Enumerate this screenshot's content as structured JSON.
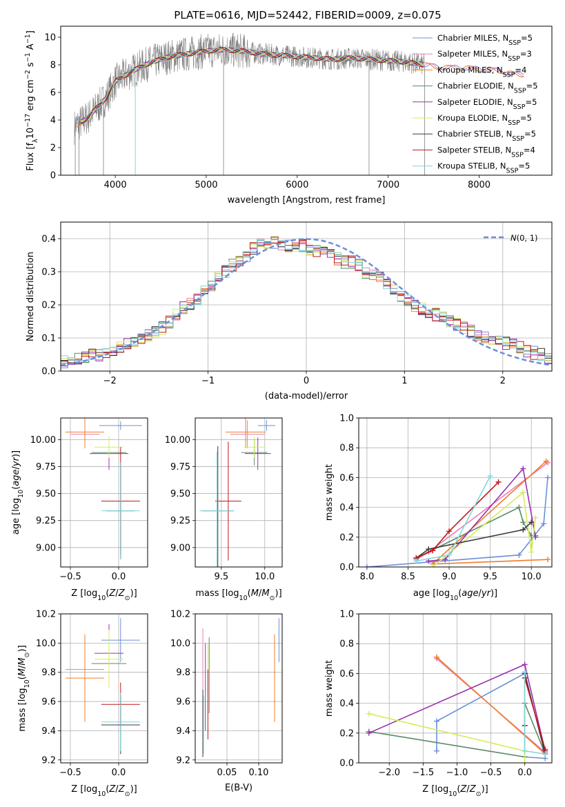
{
  "figure": {
    "title": "PLATE=0616, MJD=52442, FIBERID=0009, z=0.075"
  },
  "series": [
    {
      "name": "Chabrier MILES, N$_{SSP}$=5",
      "label_main": "Chabrier MILES, N",
      "label_sub": "SSP",
      "label_tail": "=5",
      "color": "#6a8fd8"
    },
    {
      "name": "Salpeter MILES, N$_{SSP}$=3",
      "label_main": "Salpeter MILES, N",
      "label_sub": "SSP",
      "label_tail": "=3",
      "color": "#e87fb0"
    },
    {
      "name": "Kroupa MILES, N$_{SSP}$=4",
      "label_main": "Kroupa MILES, N",
      "label_sub": "SSP",
      "label_tail": "=4",
      "color": "#ee7d2a"
    },
    {
      "name": "Chabrier ELODIE, N$_{SSP}$=5",
      "label_main": "Chabrier ELODIE, N",
      "label_sub": "SSP",
      "label_tail": "=5",
      "color": "#5a8a68"
    },
    {
      "name": "Salpeter ELODIE, N$_{SSP}$=5",
      "label_main": "Salpeter ELODIE, N",
      "label_sub": "SSP",
      "label_tail": "=5",
      "color": "#9a2fb0"
    },
    {
      "name": "Kroupa ELODIE, N$_{SSP}$=5",
      "label_main": "Kroupa ELODIE, N",
      "label_sub": "SSP",
      "label_tail": "=5",
      "color": "#d4ec5a"
    },
    {
      "name": "Chabrier STELIB, N$_{SSP}$=5",
      "label_main": "Chabrier STELIB, N",
      "label_sub": "SSP",
      "label_tail": "=5",
      "color": "#3a3a3a"
    },
    {
      "name": "Salpeter STELIB, N$_{SSP}$=4",
      "label_main": "Salpeter STELIB, N",
      "label_sub": "SSP",
      "label_tail": "=4",
      "color": "#c0161a"
    },
    {
      "name": "Kroupa STELIB, N$_{SSP}$=5",
      "label_main": "Kroupa STELIB, N",
      "label_sub": "SSP",
      "label_tail": "=5",
      "color": "#7fd8dc"
    }
  ],
  "chart_data": [
    {
      "id": "spectrum",
      "type": "line",
      "title": "PLATE=0616, MJD=52442, FIBERID=0009, z=0.075",
      "xlabel": "wavelength [Angstrom, rest frame]",
      "ylabel": "Flux [fλ 10^-17 erg cm^-2 s^-1 A^-1]",
      "xlim": [
        3400,
        8800
      ],
      "ylim": [
        0,
        10.8
      ],
      "xticks": [
        4000,
        5000,
        6000,
        7000,
        8000
      ],
      "yticks": [
        0,
        2,
        4,
        6,
        8,
        10
      ],
      "grid": false,
      "legend": "right",
      "data_color": "#808080",
      "continuum_x": [
        3550,
        3700,
        3900,
        4000,
        4200,
        4400,
        4600,
        4800,
        5000,
        5200,
        5400,
        5600,
        5800,
        6000,
        6200,
        6400,
        6600,
        6800,
        7000,
        7200,
        7400,
        7600,
        7800,
        8000,
        8200,
        8400
      ],
      "continuum_y": [
        3.5,
        4.2,
        5.6,
        6.8,
        7.6,
        8.2,
        8.6,
        8.8,
        9.0,
        9.1,
        9.0,
        8.8,
        8.7,
        8.6,
        8.5,
        8.4,
        8.5,
        8.4,
        8.3,
        8.2,
        8.0,
        7.8,
        7.8,
        7.7,
        7.6,
        7.3
      ]
    },
    {
      "id": "residuals",
      "type": "histogram",
      "xlabel": "(data-model)/error",
      "ylabel": "Normed distribution",
      "xlim": [
        -2.5,
        2.5
      ],
      "ylim": [
        0,
        0.45
      ],
      "xticks": [
        -2,
        -1,
        0,
        1,
        2
      ],
      "yticks": [
        0.0,
        0.1,
        0.2,
        0.3,
        0.4
      ],
      "grid": true,
      "legend": "top-right",
      "reference_label": "N(0,1)",
      "reference_color": "#6a8fd8",
      "bin_width": 0.1,
      "bin_start": -2.5,
      "base_values": [
        0.03,
        0.035,
        0.04,
        0.045,
        0.05,
        0.05,
        0.055,
        0.06,
        0.07,
        0.08,
        0.09,
        0.1,
        0.11,
        0.12,
        0.13,
        0.15,
        0.17,
        0.19,
        0.2,
        0.22,
        0.24,
        0.26,
        0.28,
        0.3,
        0.32,
        0.33,
        0.35,
        0.37,
        0.38,
        0.38,
        0.39,
        0.38,
        0.38,
        0.37,
        0.38,
        0.37,
        0.36,
        0.36,
        0.35,
        0.34,
        0.33,
        0.33,
        0.32,
        0.3,
        0.29,
        0.28,
        0.26,
        0.24,
        0.22,
        0.21,
        0.2,
        0.19,
        0.18,
        0.17,
        0.16,
        0.15,
        0.14,
        0.13,
        0.12,
        0.11,
        0.1,
        0.095,
        0.09,
        0.085,
        0.08,
        0.07,
        0.06,
        0.055,
        0.05,
        0.04
      ]
    },
    {
      "id": "age-vs-Z",
      "type": "errorbar",
      "xlabel": "Z [log10(Z/Z⊙)]",
      "ylabel": "age  [log10(age/yr)]",
      "xlim": [
        -0.6,
        0.3
      ],
      "ylim": [
        8.82,
        10.2
      ],
      "xticks": [
        -0.5,
        0.0
      ],
      "yticks": [
        9.0,
        9.25,
        9.5,
        9.75,
        10.0
      ],
      "grid": true,
      "points": [
        {
          "x": 0.02,
          "y": 10.13,
          "xerr": 0.22,
          "yerr": 0.04,
          "color": "#6a8fd8"
        },
        {
          "x": -0.35,
          "y": 10.05,
          "xerr": 0.15,
          "yerr": 0.13,
          "color": "#e87fb0"
        },
        {
          "x": -0.35,
          "y": 10.07,
          "xerr": 0.2,
          "yerr": 0.15,
          "color": "#ee7d2a"
        },
        {
          "x": -0.1,
          "y": 9.88,
          "xerr": 0.18,
          "yerr": 0.13,
          "color": "#5a8a68"
        },
        {
          "x": -0.1,
          "y": 9.87,
          "xerr": 0.2,
          "yerr": 0.15,
          "color": "#9a2fb0"
        },
        {
          "x": -0.1,
          "y": 9.93,
          "xerr": 0.15,
          "yerr": 0.1,
          "color": "#d4ec5a"
        },
        {
          "x": 0.02,
          "y": 9.34,
          "xerr": 0.15,
          "yerr": 0.45,
          "color": "#3a3a3a"
        },
        {
          "x": 0.02,
          "y": 9.43,
          "xerr": 0.2,
          "yerr": 0.5,
          "color": "#c0161a"
        },
        {
          "x": 0.02,
          "y": 9.34,
          "xerr": 0.2,
          "yerr": 0.45,
          "color": "#7fd8dc"
        }
      ]
    },
    {
      "id": "age-vs-mass",
      "type": "errorbar",
      "xlabel": "mass [log10(M/M⊙)]",
      "ylabel": "",
      "xlim": [
        9.2,
        10.2
      ],
      "ylim": [
        8.82,
        10.2
      ],
      "xticks": [
        9.5,
        10.0
      ],
      "yticks": [
        9.0,
        9.25,
        9.5,
        9.75,
        10.0
      ],
      "grid": true,
      "points": [
        {
          "x": 10.02,
          "y": 10.13,
          "xerr": 0.1,
          "yerr": 0.05,
          "color": "#6a8fd8"
        },
        {
          "x": 9.8,
          "y": 10.05,
          "xerr": 0.2,
          "yerr": 0.13,
          "color": "#e87fb0"
        },
        {
          "x": 9.78,
          "y": 10.07,
          "xerr": 0.23,
          "yerr": 0.15,
          "color": "#ee7d2a"
        },
        {
          "x": 9.88,
          "y": 9.88,
          "xerr": 0.15,
          "yerr": 0.12,
          "color": "#5a8a68"
        },
        {
          "x": 9.92,
          "y": 9.87,
          "xerr": 0.15,
          "yerr": 0.15,
          "color": "#9a2fb0"
        },
        {
          "x": 9.88,
          "y": 9.93,
          "xerr": 0.12,
          "yerr": 0.1,
          "color": "#d4ec5a"
        },
        {
          "x": 9.46,
          "y": 9.34,
          "xerr": 0.18,
          "yerr": 0.6,
          "color": "#3a3a3a"
        },
        {
          "x": 9.58,
          "y": 9.43,
          "xerr": 0.15,
          "yerr": 0.55,
          "color": "#c0161a"
        },
        {
          "x": 9.45,
          "y": 9.34,
          "xerr": 0.2,
          "yerr": 0.55,
          "color": "#7fd8dc"
        }
      ]
    },
    {
      "id": "weight-vs-age",
      "type": "line",
      "xlabel": "age  [log10(age/yr)]",
      "ylabel": "mass weight",
      "xlim": [
        7.9,
        10.25
      ],
      "ylim": [
        0,
        1
      ],
      "xticks": [
        8.0,
        8.5,
        9.0,
        9.5,
        10.0
      ],
      "yticks": [
        0.0,
        0.2,
        0.4,
        0.6,
        0.8,
        1.0
      ],
      "grid": true,
      "series": [
        {
          "color": "#6a8fd8",
          "x": [
            8.0,
            9.85,
            10.15,
            10.2
          ],
          "y": [
            0.0,
            0.08,
            0.29,
            0.6
          ]
        },
        {
          "color": "#e87fb0",
          "x": [
            8.6,
            8.75,
            10.2
          ],
          "y": [
            0.05,
            0.1,
            0.7
          ]
        },
        {
          "color": "#ee7d2a",
          "x": [
            10.2,
            8.8,
            10.18
          ],
          "y": [
            0.05,
            0.02,
            0.71
          ]
        },
        {
          "color": "#5a8a68",
          "x": [
            8.6,
            9.85,
            9.9,
            10.0,
            10.05
          ],
          "y": [
            0.06,
            0.4,
            0.3,
            0.21,
            0.21
          ]
        },
        {
          "color": "#9a2fb0",
          "x": [
            8.75,
            8.95,
            9.9,
            10.05
          ],
          "y": [
            0.04,
            0.05,
            0.66,
            0.2
          ]
        },
        {
          "color": "#d4ec5a",
          "x": [
            8.8,
            9.9,
            10.0,
            10.05
          ],
          "y": [
            0.0,
            0.5,
            0.1,
            0.33
          ]
        },
        {
          "color": "#3a3a3a",
          "x": [
            8.6,
            8.75,
            9.9,
            10.0
          ],
          "y": [
            0.06,
            0.12,
            0.25,
            0.3
          ]
        },
        {
          "color": "#c0161a",
          "x": [
            8.6,
            8.8,
            9.0,
            9.6
          ],
          "y": [
            0.06,
            0.11,
            0.24,
            0.57
          ]
        },
        {
          "color": "#7fd8dc",
          "x": [
            8.6,
            9.0,
            9.5
          ],
          "y": [
            0.04,
            0.08,
            0.61
          ]
        }
      ]
    },
    {
      "id": "mass-vs-Z",
      "type": "errorbar",
      "xlabel": "Z [log10(Z/Z⊙)]",
      "ylabel": "mass [log10(M/M⊙)]",
      "xlim": [
        -0.6,
        0.3
      ],
      "ylim": [
        9.18,
        10.2
      ],
      "xticks": [
        -0.5,
        0.0
      ],
      "yticks": [
        9.2,
        9.4,
        9.6,
        9.8,
        10.0,
        10.2
      ],
      "grid": true,
      "points": [
        {
          "x": 0.02,
          "y": 10.02,
          "xerr": 0.2,
          "yerr": 0.15,
          "color": "#6a8fd8"
        },
        {
          "x": -0.35,
          "y": 9.82,
          "xerr": 0.2,
          "yerr": 0.15,
          "color": "#e87fb0"
        },
        {
          "x": -0.35,
          "y": 9.76,
          "xerr": 0.2,
          "yerr": 0.3,
          "color": "#ee7d2a"
        },
        {
          "x": -0.1,
          "y": 9.86,
          "xerr": 0.18,
          "yerr": 0.15,
          "color": "#5a8a68"
        },
        {
          "x": -0.1,
          "y": 9.93,
          "xerr": 0.15,
          "yerr": 0.2,
          "color": "#9a2fb0"
        },
        {
          "x": -0.1,
          "y": 9.89,
          "xerr": 0.15,
          "yerr": 0.2,
          "color": "#d4ec5a"
        },
        {
          "x": 0.02,
          "y": 9.44,
          "xerr": 0.2,
          "yerr": 0.2,
          "color": "#3a3a3a"
        },
        {
          "x": 0.02,
          "y": 9.58,
          "xerr": 0.2,
          "yerr": 0.15,
          "color": "#c0161a"
        },
        {
          "x": 0.02,
          "y": 9.46,
          "xerr": 0.2,
          "yerr": 0.2,
          "color": "#7fd8dc"
        }
      ]
    },
    {
      "id": "mass-vs-EBV",
      "type": "errorbar",
      "xlabel": "E(B-V)",
      "ylabel": "",
      "xlim": [
        0.0,
        0.137
      ],
      "ylim": [
        9.18,
        10.2
      ],
      "xticks": [
        0.05,
        0.1
      ],
      "yticks": [
        9.2,
        9.4,
        9.6,
        9.8,
        10.0,
        10.2
      ],
      "grid": true,
      "points": [
        {
          "x": 0.132,
          "y": 10.02,
          "xerr": 0,
          "yerr": 0.15,
          "color": "#6a8fd8"
        },
        {
          "x": 0.012,
          "y": 9.82,
          "xerr": 0,
          "yerr": 0.28,
          "color": "#e87fb0"
        },
        {
          "x": 0.125,
          "y": 9.76,
          "xerr": 0,
          "yerr": 0.3,
          "color": "#ee7d2a"
        },
        {
          "x": 0.022,
          "y": 9.78,
          "xerr": 0,
          "yerr": 0.26,
          "color": "#5a8a68"
        },
        {
          "x": 0.016,
          "y": 9.7,
          "xerr": 0,
          "yerr": 0.3,
          "color": "#9a2fb0"
        },
        {
          "x": 0.02,
          "y": 9.72,
          "xerr": 0,
          "yerr": 0.28,
          "color": "#d4ec5a"
        },
        {
          "x": 0.012,
          "y": 9.45,
          "xerr": 0,
          "yerr": 0.23,
          "color": "#3a3a3a"
        },
        {
          "x": 0.02,
          "y": 9.58,
          "xerr": 0,
          "yerr": 0.24,
          "color": "#c0161a"
        },
        {
          "x": 0.013,
          "y": 9.44,
          "xerr": 0,
          "yerr": 0.2,
          "color": "#7fd8dc"
        }
      ]
    },
    {
      "id": "weight-vs-Z",
      "type": "line",
      "xlabel": "Z [log10(Z/Z⊙)]",
      "ylabel": "mass weight",
      "xlim": [
        -2.45,
        0.4
      ],
      "ylim": [
        0,
        1
      ],
      "xticks": [
        -2.0,
        -1.5,
        -1.0,
        -0.5,
        0.0
      ],
      "yticks": [
        0.0,
        0.2,
        0.4,
        0.6,
        0.8,
        1.0
      ],
      "grid": true,
      "series": [
        {
          "color": "#6a8fd8",
          "x": [
            -1.3,
            -1.3,
            0.0,
            0.0,
            0.3
          ],
          "y": [
            0.08,
            0.28,
            0.6,
            0.04,
            0.03
          ]
        },
        {
          "color": "#e87fb0",
          "x": [
            -1.3,
            0.3
          ],
          "y": [
            0.7,
            0.07
          ]
        },
        {
          "color": "#ee7d2a",
          "x": [
            -1.3,
            0.3
          ],
          "y": [
            0.71,
            0.06
          ]
        },
        {
          "color": "#5a8a68",
          "x": [
            -2.3,
            0.0,
            0.0,
            0.3
          ],
          "y": [
            0.21,
            0.04,
            0.4,
            0.06
          ]
        },
        {
          "color": "#9a2fb0",
          "x": [
            -2.3,
            0.0,
            0.3
          ],
          "y": [
            0.2,
            0.66,
            0.08
          ]
        },
        {
          "color": "#d4ec5a",
          "x": [
            -2.3,
            0.0,
            0.0
          ],
          "y": [
            0.33,
            0.08,
            0.0
          ]
        },
        {
          "color": "#3a3a3a",
          "x": [
            0.0,
            0.0,
            0.3
          ],
          "y": [
            0.25,
            0.6,
            0.06
          ]
        },
        {
          "color": "#c0161a",
          "x": [
            0.0,
            0.3
          ],
          "y": [
            0.57,
            0.09
          ]
        },
        {
          "color": "#7fd8dc",
          "x": [
            0.0,
            0.0,
            0.3
          ],
          "y": [
            0.61,
            0.08,
            0.06
          ]
        }
      ]
    }
  ]
}
